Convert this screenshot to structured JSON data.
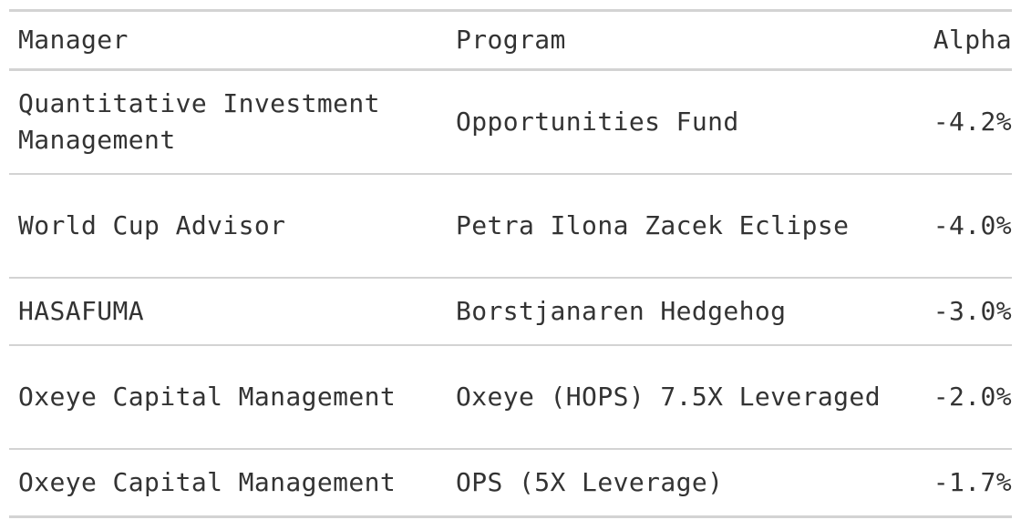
{
  "table": {
    "headers": {
      "manager": "Manager",
      "program": "Program",
      "alpha": "Alpha"
    },
    "rows": [
      {
        "manager": "Quantitative Investment Management",
        "program": "Opportunities Fund",
        "alpha": "-4.2%"
      },
      {
        "manager": "World Cup Advisor",
        "program": "Petra Ilona Zacek Eclipse",
        "alpha": "-4.0%"
      },
      {
        "manager": "HASAFUMA",
        "program": "Borstjanaren Hedgehog",
        "alpha": "-3.0%"
      },
      {
        "manager": "Oxeye Capital Management",
        "program": "Oxeye (HOPS) 7.5X Leveraged",
        "alpha": "-2.0%"
      },
      {
        "manager": "Oxeye Capital Management",
        "program": "OPS (5X Leverage)",
        "alpha": "-1.7%"
      }
    ]
  },
  "colors": {
    "text": "#333333",
    "rule": "#d3d3d3",
    "background": "#ffffff"
  }
}
